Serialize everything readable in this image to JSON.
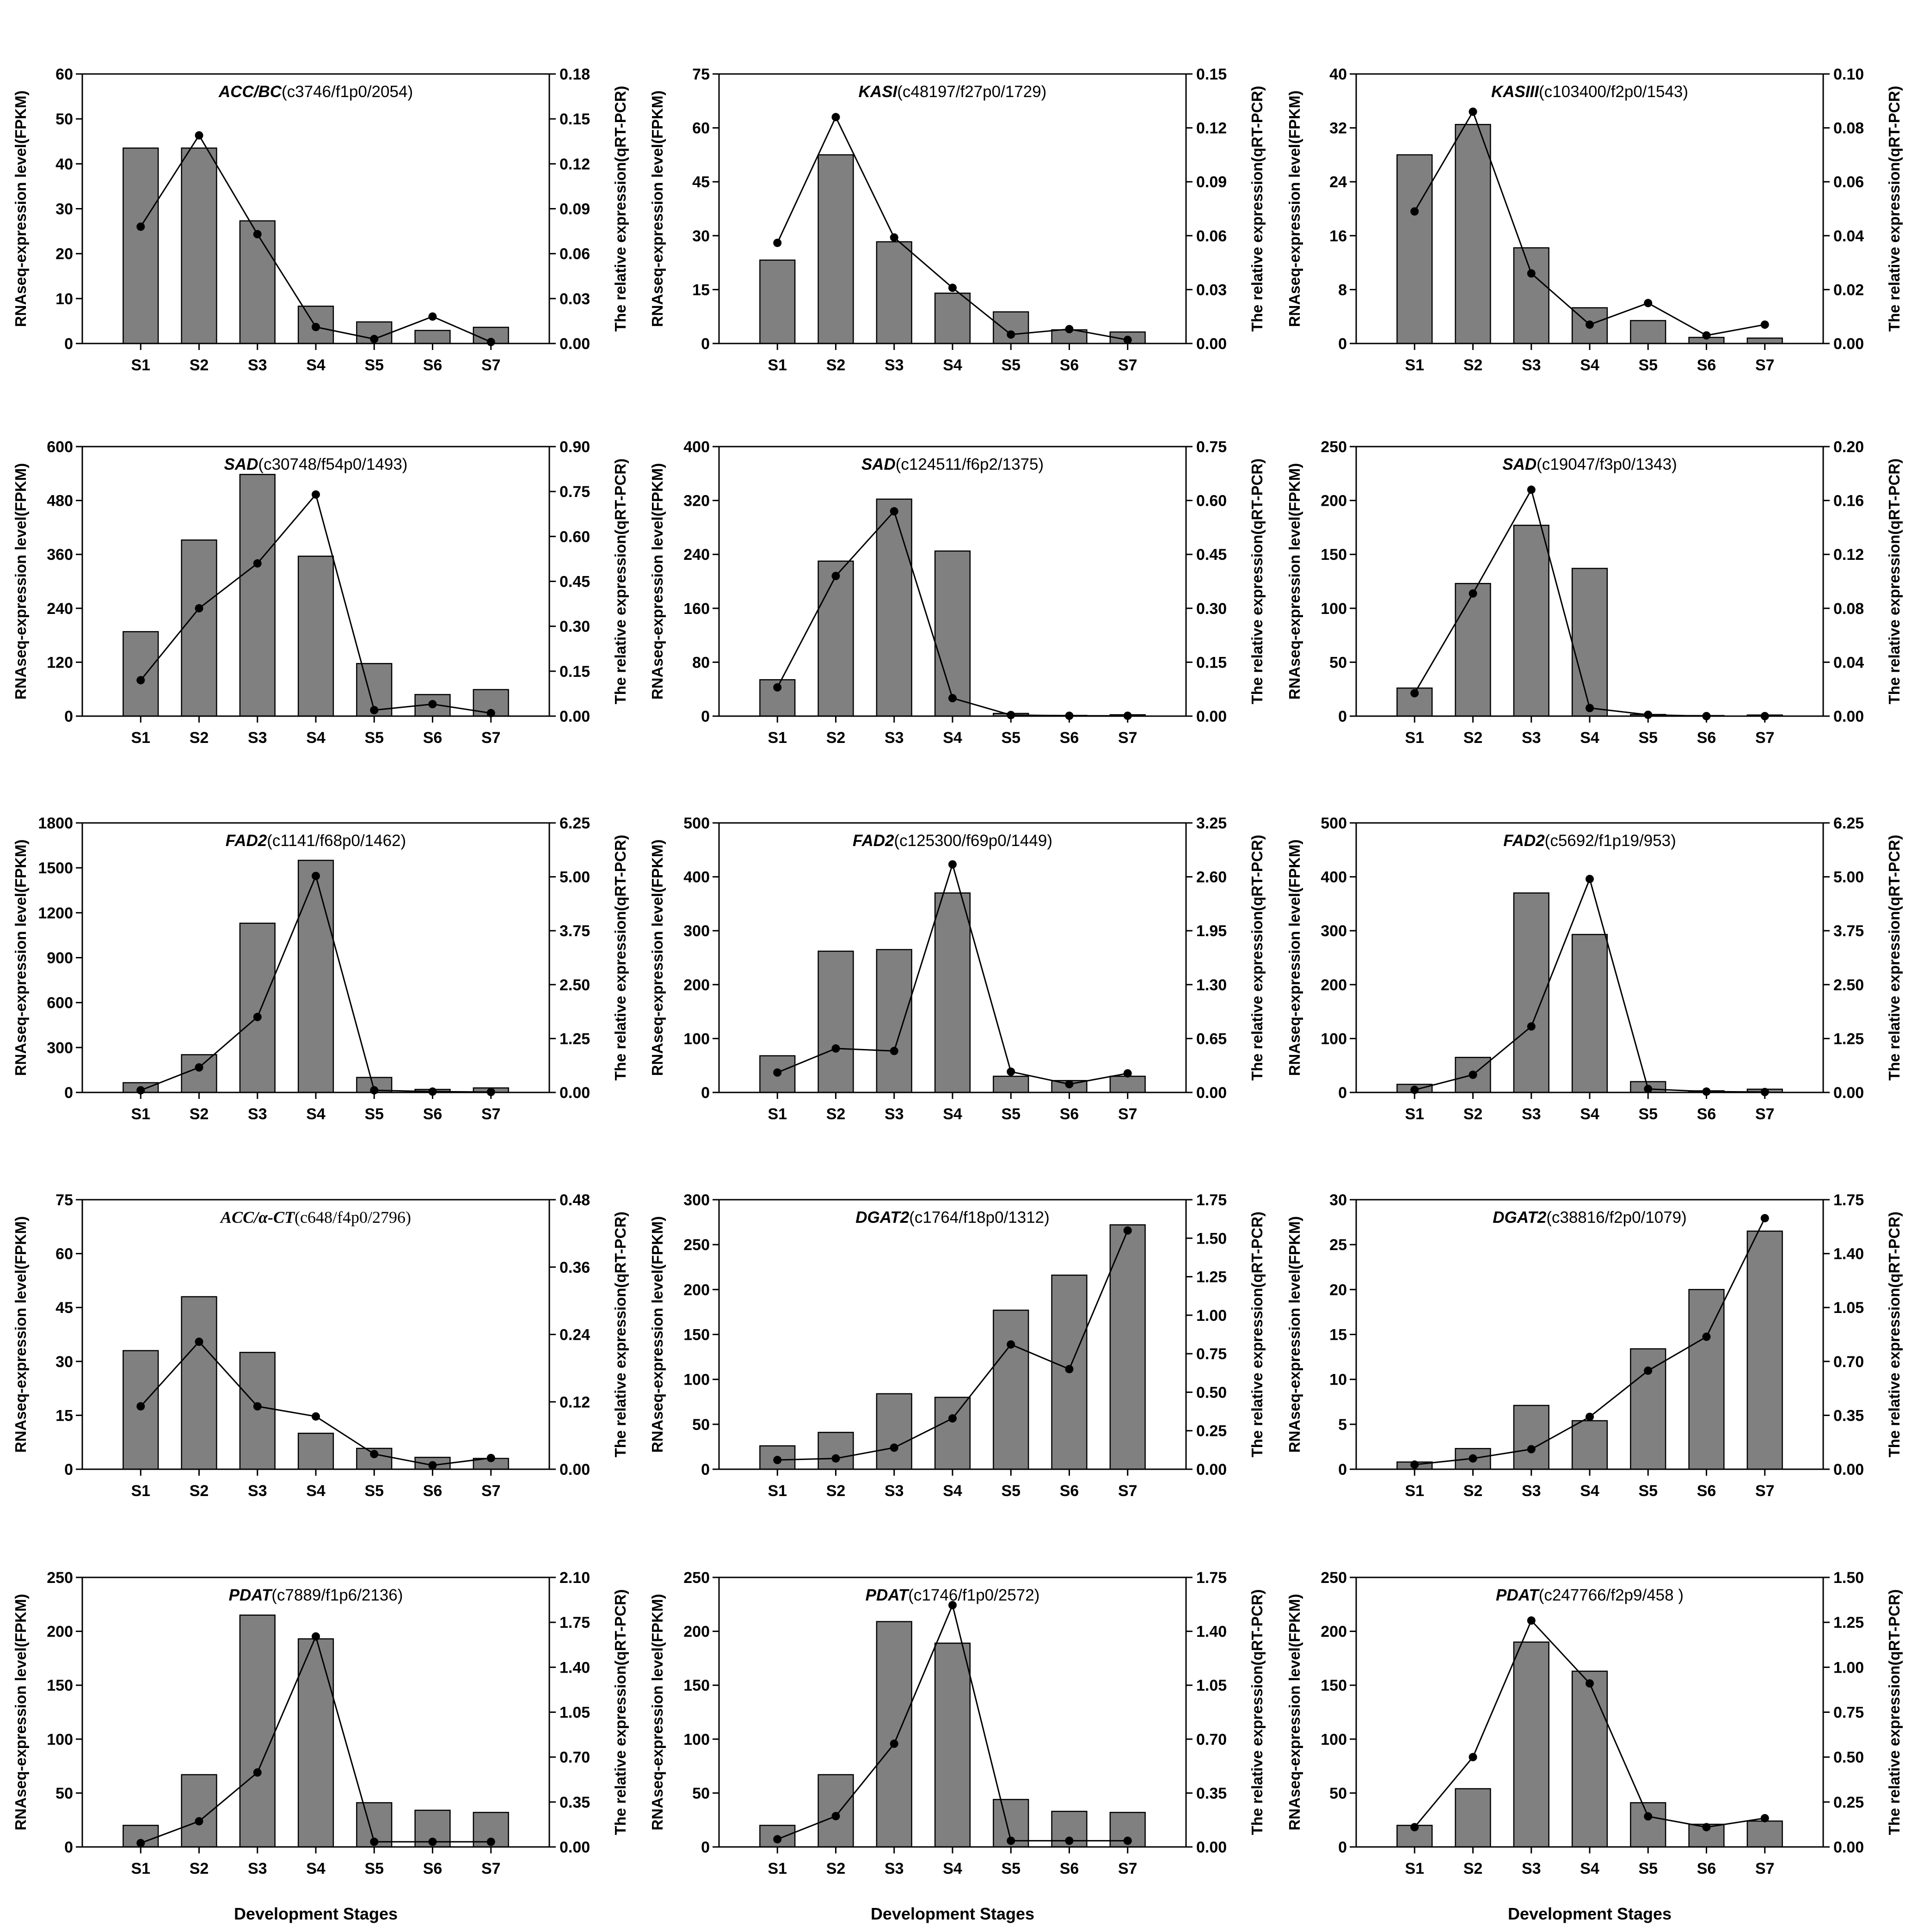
{
  "figure": {
    "xlabel": "Development Stages",
    "bar_color": "#808080",
    "line_color": "#000000"
  },
  "chart_data": [
    {
      "type": "bar+line",
      "title_gene": "ACC/BC",
      "title_id": "(c3746/f1p0/2054)",
      "categories": [
        "S1",
        "S2",
        "S3",
        "S4",
        "S5",
        "S6",
        "S7"
      ],
      "ylabel": "RNAseq-expression level(FPKM)",
      "y2label": "The relative expression(qRT-PCR)",
      "ylim": [
        0,
        60
      ],
      "y2lim": [
        0,
        0.18
      ],
      "yticks": [
        "0",
        "10",
        "20",
        "30",
        "40",
        "50",
        "60"
      ],
      "y2ticks": [
        "0.00",
        "0.03",
        "0.06",
        "0.09",
        "0.12",
        "0.15",
        "0.18"
      ],
      "series": [
        {
          "type": "bar",
          "values": [
            43.5,
            43.5,
            27.3,
            8.3,
            4.8,
            2.9,
            3.6
          ]
        },
        {
          "type": "line",
          "values": [
            0.078,
            0.139,
            0.073,
            0.011,
            0.003,
            0.018,
            0.001
          ]
        }
      ]
    },
    {
      "type": "bar+line",
      "title_gene": "KASI",
      "title_id": "(c48197/f27p0/1729)",
      "categories": [
        "S1",
        "S2",
        "S3",
        "S4",
        "S5",
        "S6",
        "S7"
      ],
      "ylabel": "RNAseq-expression level(FPKM)",
      "y2label": "The relative expression(qRT-PCR)",
      "ylim": [
        0,
        75
      ],
      "y2lim": [
        0,
        0.15
      ],
      "yticks": [
        "0",
        "15",
        "30",
        "45",
        "60",
        "75"
      ],
      "y2ticks": [
        "0.00",
        "0.03",
        "0.06",
        "0.09",
        "0.12",
        "0.15"
      ],
      "series": [
        {
          "type": "bar",
          "values": [
            23.2,
            52.5,
            28.3,
            14.0,
            8.8,
            3.8,
            3.2
          ]
        },
        {
          "type": "line",
          "values": [
            0.056,
            0.126,
            0.059,
            0.031,
            0.005,
            0.008,
            0.002
          ]
        }
      ]
    },
    {
      "type": "bar+line",
      "title_gene": "KASIII",
      "title_id": "(c103400/f2p0/1543)",
      "categories": [
        "S1",
        "S2",
        "S3",
        "S4",
        "S5",
        "S6",
        "S7"
      ],
      "ylabel": "RNAseq-expression level(FPKM)",
      "y2label": "The relative expression(qRT-PCR)",
      "ylim": [
        0,
        40
      ],
      "y2lim": [
        0,
        0.1
      ],
      "yticks": [
        "0",
        "8",
        "16",
        "24",
        "32",
        "40"
      ],
      "y2ticks": [
        "0.00",
        "0.02",
        "0.04",
        "0.06",
        "0.08",
        "0.10"
      ],
      "series": [
        {
          "type": "bar",
          "values": [
            28.0,
            32.5,
            14.2,
            5.3,
            3.4,
            0.9,
            0.8
          ]
        },
        {
          "type": "line",
          "values": [
            0.049,
            0.086,
            0.026,
            0.007,
            0.015,
            0.003,
            0.007
          ]
        }
      ]
    },
    {
      "type": "bar+line",
      "title_gene": "SAD",
      "title_id": "(c30748/f54p0/1493)",
      "categories": [
        "S1",
        "S2",
        "S3",
        "S4",
        "S5",
        "S6",
        "S7"
      ],
      "ylabel": "RNAseq-expression level(FPKM)",
      "y2label": "The relative expression(qRT-PCR)",
      "ylim": [
        0,
        600
      ],
      "y2lim": [
        0,
        0.9
      ],
      "yticks": [
        "0",
        "120",
        "240",
        "360",
        "480",
        "600"
      ],
      "y2ticks": [
        "0.00",
        "0.15",
        "0.30",
        "0.45",
        "0.60",
        "0.75",
        "0.90"
      ],
      "series": [
        {
          "type": "bar",
          "values": [
            188,
            392,
            538,
            356,
            117,
            48,
            59
          ]
        },
        {
          "type": "line",
          "values": [
            0.12,
            0.36,
            0.51,
            0.74,
            0.02,
            0.04,
            0.01
          ]
        }
      ]
    },
    {
      "type": "bar+line",
      "title_gene": "SAD",
      "title_id": "(c124511/f6p2/1375)",
      "categories": [
        "S1",
        "S2",
        "S3",
        "S4",
        "S5",
        "S6",
        "S7"
      ],
      "ylabel": "RNAseq-expression level(FPKM)",
      "y2label": "The relative expression(qRT-PCR)",
      "ylim": [
        0,
        400
      ],
      "y2lim": [
        0,
        0.75
      ],
      "yticks": [
        "0",
        "80",
        "160",
        "240",
        "320",
        "400"
      ],
      "y2ticks": [
        "0.00",
        "0.15",
        "0.30",
        "0.45",
        "0.60",
        "0.75"
      ],
      "series": [
        {
          "type": "bar",
          "values": [
            54,
            230,
            322,
            245,
            4,
            1,
            2
          ]
        },
        {
          "type": "line",
          "values": [
            0.08,
            0.39,
            0.57,
            0.05,
            0.003,
            0.001,
            0.001
          ]
        }
      ]
    },
    {
      "type": "bar+line",
      "title_gene": "SAD",
      "title_id": "(c19047/f3p0/1343)",
      "categories": [
        "S1",
        "S2",
        "S3",
        "S4",
        "S5",
        "S6",
        "S7"
      ],
      "ylabel": "RNAseq-expression level(FPKM)",
      "y2label": "The relative expression(qRT-PCR)",
      "ylim": [
        0,
        250
      ],
      "y2lim": [
        0,
        0.2
      ],
      "yticks": [
        "0",
        "50",
        "100",
        "150",
        "200",
        "250"
      ],
      "y2ticks": [
        "0.00",
        "0.04",
        "0.08",
        "0.12",
        "0.16",
        "0.20"
      ],
      "series": [
        {
          "type": "bar",
          "values": [
            26,
            123,
            177,
            137,
            1.5,
            0.5,
            1
          ]
        },
        {
          "type": "line",
          "values": [
            0.017,
            0.091,
            0.168,
            0.006,
            0.001,
            0.0,
            0.0
          ]
        }
      ]
    },
    {
      "type": "bar+line",
      "title_gene": "FAD2",
      "title_id": "(c1141/f68p0/1462)",
      "categories": [
        "S1",
        "S2",
        "S3",
        "S4",
        "S5",
        "S6",
        "S7"
      ],
      "ylabel": "RNAseq-expression level(FPKM)",
      "y2label": "The relative expression(qRT-PCR)",
      "ylim": [
        0,
        1800
      ],
      "y2lim": [
        0,
        6.25
      ],
      "yticks": [
        "0",
        "300",
        "600",
        "900",
        "1200",
        "1500",
        "1800"
      ],
      "y2ticks": [
        "0.00",
        "1.25",
        "2.50",
        "3.75",
        "5.00",
        "6.25"
      ],
      "series": [
        {
          "type": "bar",
          "values": [
            65,
            252,
            1130,
            1550,
            100,
            20,
            30
          ]
        },
        {
          "type": "line",
          "values": [
            0.05,
            0.58,
            1.75,
            5.02,
            0.05,
            0.02,
            0.01
          ]
        }
      ]
    },
    {
      "type": "bar+line",
      "title_gene": "FAD2",
      "title_id": "(c125300/f69p0/1449)",
      "categories": [
        "S1",
        "S2",
        "S3",
        "S4",
        "S5",
        "S6",
        "S7"
      ],
      "ylabel": "RNAseq-expression level(FPKM)",
      "y2label": "The relative expression(qRT-PCR)",
      "ylim": [
        0,
        500
      ],
      "y2lim": [
        0,
        3.25
      ],
      "yticks": [
        "0",
        "100",
        "200",
        "300",
        "400",
        "500"
      ],
      "y2ticks": [
        "0.00",
        "0.65",
        "1.30",
        "1.95",
        "2.60",
        "3.25"
      ],
      "series": [
        {
          "type": "bar",
          "values": [
            68,
            262,
            265,
            370,
            30,
            22,
            30
          ]
        },
        {
          "type": "line",
          "values": [
            0.24,
            0.53,
            0.5,
            2.75,
            0.25,
            0.1,
            0.23
          ]
        }
      ]
    },
    {
      "type": "bar+line",
      "title_gene": "FAD2",
      "title_id": "(c5692/f1p19/953)",
      "categories": [
        "S1",
        "S2",
        "S3",
        "S4",
        "S5",
        "S6",
        "S7"
      ],
      "ylabel": "RNAseq-expression level(FPKM)",
      "y2label": "The relative expression(qRT-PCR)",
      "ylim": [
        0,
        500
      ],
      "y2lim": [
        0,
        6.25
      ],
      "yticks": [
        "0",
        "100",
        "200",
        "300",
        "400",
        "500"
      ],
      "y2ticks": [
        "0.00",
        "1.25",
        "2.50",
        "3.75",
        "5.00",
        "6.25"
      ],
      "series": [
        {
          "type": "bar",
          "values": [
            15,
            65,
            370,
            293,
            20,
            3,
            6
          ]
        },
        {
          "type": "line",
          "values": [
            0.06,
            0.41,
            1.53,
            4.95,
            0.08,
            0.02,
            0.01
          ]
        }
      ]
    },
    {
      "type": "bar+line",
      "title_gene": "ACC/α-CT",
      "title_id": "(c648/f4p0/2796)",
      "title_font": "serif",
      "categories": [
        "S1",
        "S2",
        "S3",
        "S4",
        "S5",
        "S6",
        "S7"
      ],
      "ylabel": "RNAseq-expression level(FPKM)",
      "y2label": "The relative expression(qRT-PCR)",
      "ylim": [
        0,
        75
      ],
      "y2lim": [
        0,
        0.48
      ],
      "yticks": [
        "0",
        "15",
        "30",
        "45",
        "60",
        "75"
      ],
      "y2ticks": [
        "0.00",
        "0.12",
        "0.24",
        "0.36",
        "0.48"
      ],
      "series": [
        {
          "type": "bar",
          "values": [
            33,
            48,
            32.5,
            10,
            5.8,
            3.3,
            3
          ]
        },
        {
          "type": "line",
          "values": [
            0.112,
            0.227,
            0.112,
            0.094,
            0.027,
            0.007,
            0.02
          ]
        }
      ]
    },
    {
      "type": "bar+line",
      "title_gene": "DGAT2",
      "title_id": "(c1764/f18p0/1312)",
      "categories": [
        "S1",
        "S2",
        "S3",
        "S4",
        "S5",
        "S6",
        "S7"
      ],
      "ylabel": "RNAseq-expression level(FPKM)",
      "y2label": "The relative expression(qRT-PCR)",
      "ylim": [
        0,
        300
      ],
      "y2lim": [
        0,
        1.75
      ],
      "yticks": [
        "0",
        "50",
        "100",
        "150",
        "200",
        "250",
        "300"
      ],
      "y2ticks": [
        "0.00",
        "0.25",
        "0.50",
        "0.75",
        "1.00",
        "1.25",
        "1.50",
        "1.75"
      ],
      "series": [
        {
          "type": "bar",
          "values": [
            26,
            41,
            84,
            80,
            177,
            216,
            272
          ]
        },
        {
          "type": "line",
          "values": [
            0.06,
            0.07,
            0.14,
            0.33,
            0.81,
            0.65,
            1.55
          ]
        }
      ]
    },
    {
      "type": "bar+line",
      "title_gene": "DGAT2",
      "title_id": "(c38816/f2p0/1079)",
      "categories": [
        "S1",
        "S2",
        "S3",
        "S4",
        "S5",
        "S6",
        "S7"
      ],
      "ylabel": "RNAseq-expression level(FPKM)",
      "y2label": "The relative expression(qRT-PCR)",
      "ylim": [
        0,
        30
      ],
      "y2lim": [
        0,
        1.75
      ],
      "yticks": [
        "0",
        "5",
        "10",
        "15",
        "20",
        "25",
        "30"
      ],
      "y2ticks": [
        "0.00",
        "0.35",
        "0.70",
        "1.05",
        "1.40",
        "1.75"
      ],
      "series": [
        {
          "type": "bar",
          "values": [
            0.8,
            2.3,
            7.1,
            5.4,
            13.4,
            20,
            26.5
          ]
        },
        {
          "type": "line",
          "values": [
            0.03,
            0.07,
            0.13,
            0.34,
            0.64,
            0.86,
            1.63
          ]
        }
      ]
    },
    {
      "type": "bar+line",
      "title_gene": "PDAT",
      "title_id": "(c7889/f1p6/2136)",
      "categories": [
        "S1",
        "S2",
        "S3",
        "S4",
        "S5",
        "S6",
        "S7"
      ],
      "ylabel": "RNAseq-expression level(FPKM)",
      "y2label": "The relative expression(qRT-PCR)",
      "ylim": [
        0,
        250
      ],
      "y2lim": [
        0,
        2.1
      ],
      "yticks": [
        "0",
        "50",
        "100",
        "150",
        "200",
        "250"
      ],
      "y2ticks": [
        "0.00",
        "0.35",
        "0.70",
        "1.05",
        "1.40",
        "1.75",
        "2.10"
      ],
      "series": [
        {
          "type": "bar",
          "values": [
            20,
            67,
            215,
            193,
            41,
            34,
            32
          ]
        },
        {
          "type": "line",
          "values": [
            0.03,
            0.2,
            0.58,
            1.64,
            0.04,
            0.04,
            0.04
          ]
        }
      ]
    },
    {
      "type": "bar+line",
      "title_gene": "PDAT",
      "title_id": "(c1746/f1p0/2572)",
      "categories": [
        "S1",
        "S2",
        "S3",
        "S4",
        "S5",
        "S6",
        "S7"
      ],
      "ylabel": "RNAseq-expression level(FPKM)",
      "y2label": "The relative expression(qRT-PCR)",
      "ylim": [
        0,
        250
      ],
      "y2lim": [
        0,
        1.75
      ],
      "yticks": [
        "0",
        "50",
        "100",
        "150",
        "200",
        "250"
      ],
      "y2ticks": [
        "0.00",
        "0.35",
        "0.70",
        "1.05",
        "1.40",
        "1.75"
      ],
      "series": [
        {
          "type": "bar",
          "values": [
            20,
            67,
            209,
            189,
            44,
            33,
            32
          ]
        },
        {
          "type": "line",
          "values": [
            0.05,
            0.2,
            0.67,
            1.57,
            0.04,
            0.04,
            0.04
          ]
        }
      ]
    },
    {
      "type": "bar+line",
      "title_gene": "PDAT",
      "title_id": "(c247766/f2p9/458 )",
      "categories": [
        "S1",
        "S2",
        "S3",
        "S4",
        "S5",
        "S6",
        "S7"
      ],
      "ylabel": "RNAseq-expression level(FPKM)",
      "y2label": "The relative expression(qRT-PCR)",
      "ylim": [
        0,
        250
      ],
      "y2lim": [
        0,
        1.5
      ],
      "yticks": [
        "0",
        "50",
        "100",
        "150",
        "200",
        "250"
      ],
      "y2ticks": [
        "0.00",
        "0.25",
        "0.50",
        "0.75",
        "1.00",
        "1.25",
        "1.50"
      ],
      "series": [
        {
          "type": "bar",
          "values": [
            20,
            54,
            190,
            163,
            41,
            21,
            24
          ]
        },
        {
          "type": "line",
          "values": [
            0.11,
            0.5,
            1.26,
            0.91,
            0.17,
            0.11,
            0.16
          ]
        }
      ]
    }
  ]
}
